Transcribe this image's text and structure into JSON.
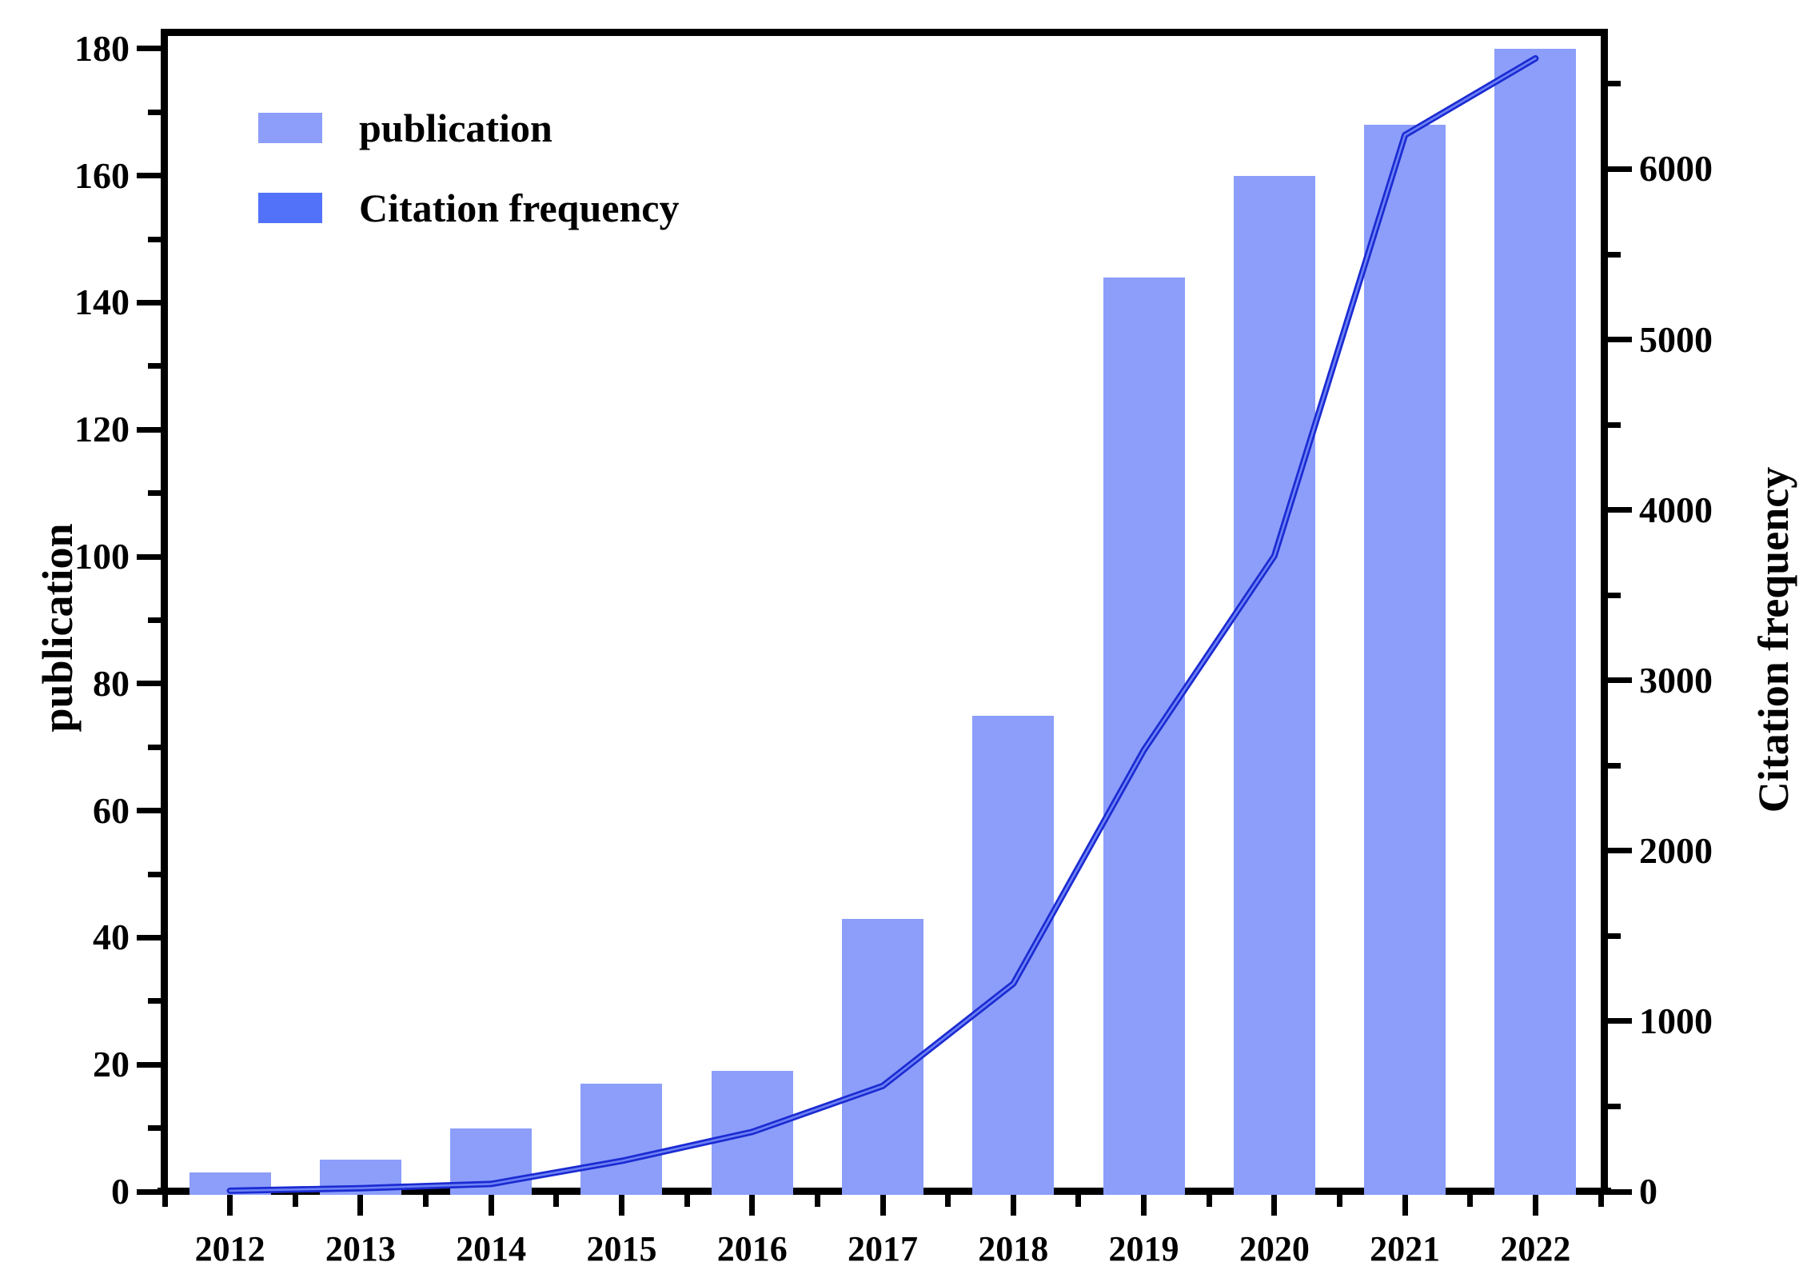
{
  "chart_data": {
    "type": "bar",
    "subtype": "bar+line dual axis",
    "categories": [
      "2012",
      "2013",
      "2014",
      "2015",
      "2016",
      "2017",
      "2018",
      "2019",
      "2020",
      "2021",
      "2022"
    ],
    "series": [
      {
        "name": "publication",
        "type": "bar",
        "axis": "left",
        "values": [
          3,
          5,
          10,
          17,
          19,
          43,
          75,
          144,
          160,
          168,
          180
        ],
        "color": "#8C9EFA"
      },
      {
        "name": "Citation frequency",
        "type": "line",
        "axis": "right",
        "values": [
          5,
          20,
          45,
          180,
          350,
          620,
          1220,
          2590,
          3730,
          6200,
          6650
        ],
        "color": "#1B2BD2",
        "core_color": "#6E82F5",
        "legend_color": "#5272FA"
      }
    ],
    "left_axis": {
      "label": "publication",
      "min": 0,
      "max": 182.5,
      "major_step": 20,
      "minor_step": 10,
      "tick_labels": [
        "0",
        "20",
        "40",
        "60",
        "80",
        "100",
        "120",
        "140",
        "160",
        "180"
      ]
    },
    "right_axis": {
      "label": "Citation frequency",
      "min": 0,
      "max": 6800,
      "major_step": 1000,
      "minor_step": 500,
      "tick_labels": [
        "0",
        "1000",
        "2000",
        "3000",
        "4000",
        "5000",
        "6000"
      ]
    },
    "x_axis": {
      "tick_labels": [
        "2012",
        "2013",
        "2014",
        "2015",
        "2016",
        "2017",
        "2018",
        "2019",
        "2020",
        "2021",
        "2022"
      ]
    },
    "legend": {
      "position": "top-left-inside",
      "entries": [
        "publication",
        "Citation frequency"
      ]
    },
    "grid": false,
    "background": "#ffffff",
    "text_color": "#000000"
  }
}
